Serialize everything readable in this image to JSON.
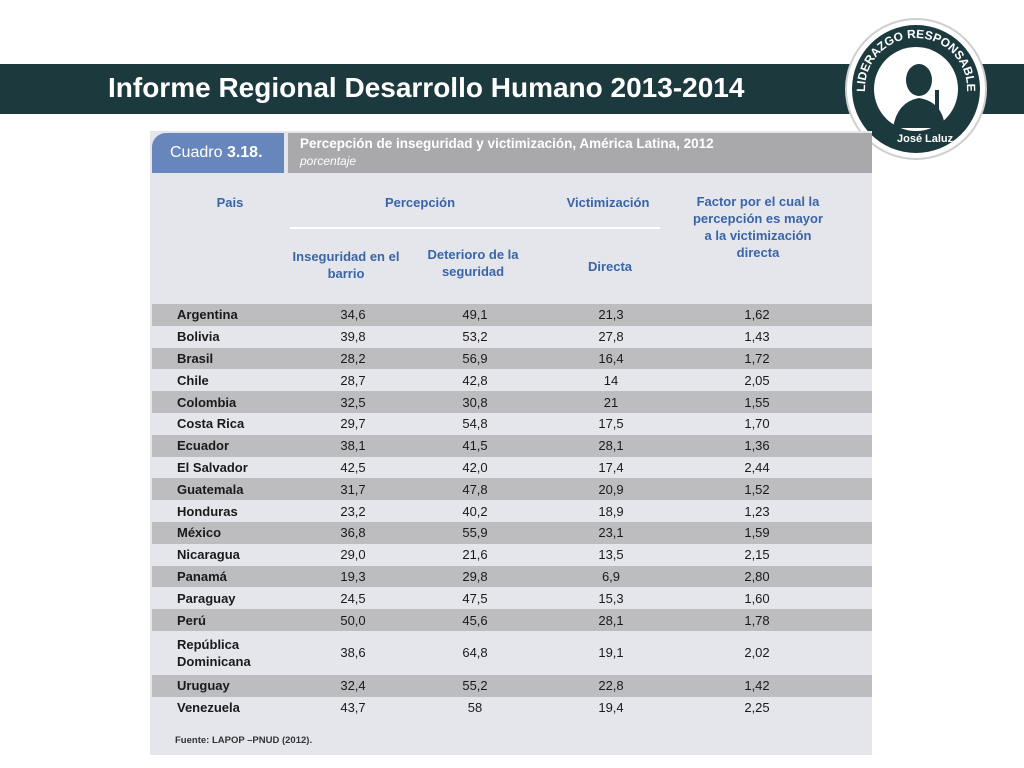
{
  "slide": {
    "title": "Informe Regional Desarrollo Humano 2013-2014"
  },
  "logo": {
    "arc_text": "LIDERAZGO RESPONSABLE",
    "name_left": "José",
    "name_right": "Laluz"
  },
  "table": {
    "cuadro_label": "Cuadro",
    "cuadro_number": "3.18.",
    "caption_title": "Percepción de inseguridad y victimización, América Latina, 2012",
    "caption_subtitle": "porcentaje",
    "headers": {
      "pais": "Pais",
      "percepcion": "Percepción",
      "victimizacion": "Victimización",
      "factor": "Factor por el cual la percepción es mayor a la victimización directa",
      "inseguridad": "Inseguridad en el barrio",
      "deterioro": "Deterioro de la seguridad",
      "directa": "Directa"
    },
    "rows": [
      [
        "Argentina",
        "34,6",
        "49,1",
        "21,3",
        "1,62"
      ],
      [
        "Bolivia",
        "39,8",
        "53,2",
        "27,8",
        "1,43"
      ],
      [
        "Brasil",
        "28,2",
        "56,9",
        "16,4",
        "1,72"
      ],
      [
        "Chile",
        "28,7",
        "42,8",
        "14",
        "2,05"
      ],
      [
        "Colombia",
        "32,5",
        "30,8",
        "21",
        "1,55"
      ],
      [
        "Costa Rica",
        "29,7",
        "54,8",
        "17,5",
        "1,70"
      ],
      [
        "Ecuador",
        "38,1",
        "41,5",
        "28,1",
        "1,36"
      ],
      [
        "El Salvador",
        "42,5",
        "42,0",
        "17,4",
        "2,44"
      ],
      [
        "Guatemala",
        "31,7",
        "47,8",
        "20,9",
        "1,52"
      ],
      [
        "Honduras",
        "23,2",
        "40,2",
        "18,9",
        "1,23"
      ],
      [
        "México",
        "36,8",
        "55,9",
        "23,1",
        "1,59"
      ],
      [
        "Nicaragua",
        "29,0",
        "21,6",
        "13,5",
        "2,15"
      ],
      [
        "Panamá",
        "19,3",
        "29,8",
        "6,9",
        "2,80"
      ],
      [
        "Paraguay",
        "24,5",
        "47,5",
        "15,3",
        "1,60"
      ],
      [
        "Perú",
        "50,0",
        "45,6",
        "28,1",
        "1,78"
      ],
      [
        "República Dominicana",
        "38,6",
        "64,8",
        "19,1",
        "2,02"
      ],
      [
        "Uruguay",
        "32,4",
        "55,2",
        "22,8",
        "1,42"
      ],
      [
        "Venezuela",
        "43,7",
        "58",
        "19,4",
        "2,25"
      ]
    ],
    "source": "Fuente: LAPOP –PNUD (2012)."
  },
  "colors": {
    "title_bar": "#1c3a3e",
    "tab_blue": "#6787bc",
    "header_text": "#3a64a8",
    "caption_gray": "#a9a9ab",
    "row_shade": "#bdbdbf",
    "panel": "#e4e6ec"
  }
}
